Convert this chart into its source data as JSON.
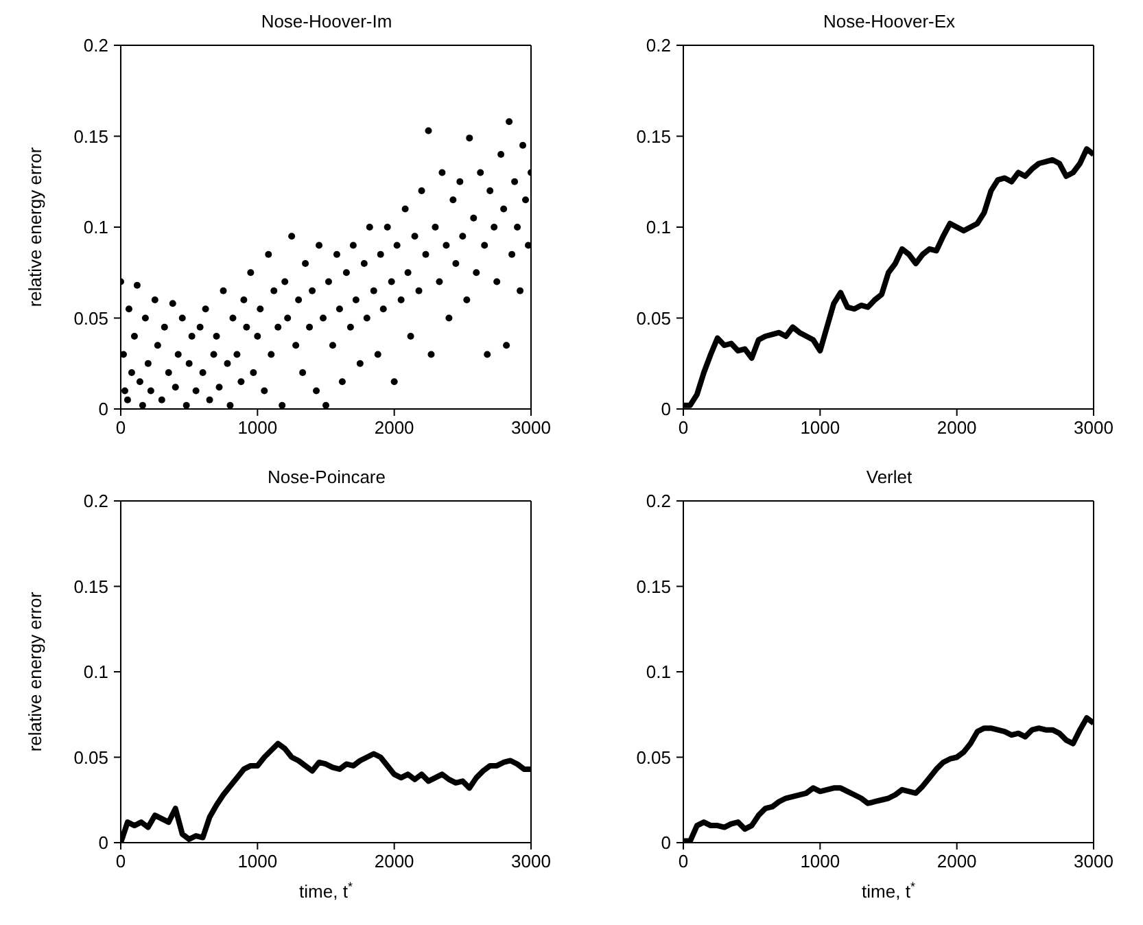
{
  "chart_data": [
    {
      "type": "scatter",
      "title": "Nose-Hoover-Im",
      "ylabel": "relative energy error",
      "color": "#000000",
      "marker": "circle",
      "xlim": [
        0,
        3000
      ],
      "xticks": [
        0,
        1000,
        2000,
        3000
      ],
      "ylim": [
        0,
        0.2
      ],
      "yticks": [
        0,
        0.05,
        0.1,
        0.15,
        0.2
      ],
      "x": [
        0,
        20,
        30,
        50,
        60,
        80,
        100,
        120,
        140,
        160,
        180,
        200,
        220,
        250,
        270,
        300,
        320,
        350,
        380,
        400,
        420,
        450,
        480,
        500,
        520,
        550,
        580,
        600,
        620,
        650,
        680,
        700,
        720,
        750,
        780,
        800,
        820,
        850,
        880,
        900,
        920,
        950,
        970,
        1000,
        1020,
        1050,
        1080,
        1100,
        1120,
        1150,
        1180,
        1200,
        1220,
        1250,
        1280,
        1300,
        1330,
        1350,
        1380,
        1400,
        1430,
        1450,
        1480,
        1500,
        1520,
        1550,
        1580,
        1600,
        1620,
        1650,
        1680,
        1700,
        1720,
        1750,
        1780,
        1800,
        1820,
        1850,
        1880,
        1900,
        1920,
        1950,
        1980,
        2000,
        2020,
        2050,
        2080,
        2100,
        2120,
        2150,
        2180,
        2200,
        2230,
        2250,
        2270,
        2300,
        2330,
        2350,
        2380,
        2400,
        2430,
        2450,
        2480,
        2500,
        2530,
        2550,
        2580,
        2600,
        2630,
        2660,
        2680,
        2700,
        2730,
        2750,
        2780,
        2800,
        2820,
        2840,
        2860,
        2880,
        2900,
        2920,
        2940,
        2960,
        2980,
        3000
      ],
      "values": [
        0.07,
        0.03,
        0.01,
        0.005,
        0.055,
        0.02,
        0.04,
        0.068,
        0.015,
        0.002,
        0.05,
        0.025,
        0.01,
        0.06,
        0.035,
        0.005,
        0.045,
        0.02,
        0.058,
        0.012,
        0.03,
        0.05,
        0.002,
        0.025,
        0.04,
        0.01,
        0.045,
        0.02,
        0.055,
        0.005,
        0.03,
        0.04,
        0.012,
        0.065,
        0.025,
        0.002,
        0.05,
        0.03,
        0.015,
        0.06,
        0.045,
        0.075,
        0.02,
        0.04,
        0.055,
        0.01,
        0.085,
        0.03,
        0.065,
        0.045,
        0.002,
        0.07,
        0.05,
        0.095,
        0.035,
        0.06,
        0.02,
        0.08,
        0.045,
        0.065,
        0.01,
        0.09,
        0.05,
        0.002,
        0.07,
        0.035,
        0.085,
        0.055,
        0.015,
        0.075,
        0.045,
        0.09,
        0.06,
        0.025,
        0.08,
        0.05,
        0.1,
        0.065,
        0.03,
        0.085,
        0.055,
        0.1,
        0.07,
        0.015,
        0.09,
        0.06,
        0.11,
        0.075,
        0.04,
        0.095,
        0.065,
        0.12,
        0.085,
        0.153,
        0.03,
        0.1,
        0.07,
        0.13,
        0.09,
        0.05,
        0.115,
        0.08,
        0.125,
        0.095,
        0.06,
        0.149,
        0.105,
        0.075,
        0.13,
        0.09,
        0.03,
        0.12,
        0.1,
        0.07,
        0.14,
        0.11,
        0.035,
        0.158,
        0.085,
        0.125,
        0.1,
        0.065,
        0.145,
        0.115,
        0.09,
        0.13
      ]
    },
    {
      "type": "line",
      "title": "Nose-Hoover-Ex",
      "color": "#000000",
      "xlim": [
        0,
        3000
      ],
      "xticks": [
        0,
        1000,
        2000,
        3000
      ],
      "ylim": [
        0,
        0.2
      ],
      "yticks": [
        0,
        0.05,
        0.1,
        0.15,
        0.2
      ],
      "x": [
        0,
        50,
        100,
        150,
        200,
        250,
        300,
        350,
        400,
        450,
        500,
        550,
        600,
        650,
        700,
        750,
        800,
        850,
        900,
        950,
        1000,
        1050,
        1100,
        1150,
        1200,
        1250,
        1300,
        1350,
        1400,
        1450,
        1500,
        1550,
        1600,
        1650,
        1700,
        1750,
        1800,
        1850,
        1900,
        1950,
        2000,
        2050,
        2100,
        2150,
        2200,
        2250,
        2300,
        2350,
        2400,
        2450,
        2500,
        2550,
        2600,
        2650,
        2700,
        2750,
        2800,
        2850,
        2900,
        2950,
        3000
      ],
      "values": [
        0.002,
        0.002,
        0.008,
        0.02,
        0.03,
        0.039,
        0.035,
        0.036,
        0.032,
        0.033,
        0.028,
        0.038,
        0.04,
        0.041,
        0.042,
        0.04,
        0.045,
        0.042,
        0.04,
        0.038,
        0.032,
        0.045,
        0.058,
        0.064,
        0.056,
        0.055,
        0.057,
        0.056,
        0.06,
        0.063,
        0.075,
        0.08,
        0.088,
        0.085,
        0.08,
        0.085,
        0.088,
        0.087,
        0.095,
        0.102,
        0.1,
        0.098,
        0.1,
        0.102,
        0.108,
        0.12,
        0.126,
        0.127,
        0.125,
        0.13,
        0.128,
        0.132,
        0.135,
        0.136,
        0.137,
        0.135,
        0.128,
        0.13,
        0.135,
        0.143,
        0.14
      ]
    },
    {
      "type": "line",
      "title": "Nose-Poincare",
      "ylabel": "relative energy error",
      "xlabel": "time, t$^{*}$",
      "color": "#000000",
      "xlim": [
        0,
        3000
      ],
      "xticks": [
        0,
        1000,
        2000,
        3000
      ],
      "ylim": [
        0,
        0.2
      ],
      "yticks": [
        0,
        0.05,
        0.1,
        0.15,
        0.2
      ],
      "x": [
        0,
        50,
        100,
        150,
        200,
        250,
        300,
        350,
        400,
        450,
        500,
        550,
        600,
        650,
        700,
        750,
        800,
        850,
        900,
        950,
        1000,
        1050,
        1100,
        1150,
        1200,
        1250,
        1300,
        1350,
        1400,
        1450,
        1500,
        1550,
        1600,
        1650,
        1700,
        1750,
        1800,
        1850,
        1900,
        1950,
        2000,
        2050,
        2100,
        2150,
        2200,
        2250,
        2300,
        2350,
        2400,
        2450,
        2500,
        2550,
        2600,
        2650,
        2700,
        2750,
        2800,
        2850,
        2900,
        2950,
        3000
      ],
      "values": [
        0,
        0.012,
        0.01,
        0.012,
        0.009,
        0.016,
        0.014,
        0.012,
        0.02,
        0.005,
        0.002,
        0.004,
        0.003,
        0.015,
        0.022,
        0.028,
        0.033,
        0.038,
        0.043,
        0.045,
        0.045,
        0.05,
        0.054,
        0.058,
        0.055,
        0.05,
        0.048,
        0.045,
        0.042,
        0.047,
        0.046,
        0.044,
        0.043,
        0.046,
        0.045,
        0.048,
        0.05,
        0.052,
        0.05,
        0.045,
        0.04,
        0.038,
        0.04,
        0.037,
        0.04,
        0.036,
        0.038,
        0.04,
        0.037,
        0.035,
        0.036,
        0.032,
        0.038,
        0.042,
        0.045,
        0.045,
        0.047,
        0.048,
        0.046,
        0.043,
        0.043
      ]
    },
    {
      "type": "line",
      "title": "Verlet",
      "xlabel": "time, t$^{*}$",
      "color": "#000000",
      "xlim": [
        0,
        3000
      ],
      "xticks": [
        0,
        1000,
        2000,
        3000
      ],
      "ylim": [
        0,
        0.2
      ],
      "yticks": [
        0,
        0.05,
        0.1,
        0.15,
        0.2
      ],
      "x": [
        0,
        50,
        100,
        150,
        200,
        250,
        300,
        350,
        400,
        450,
        500,
        550,
        600,
        650,
        700,
        750,
        800,
        850,
        900,
        950,
        1000,
        1050,
        1100,
        1150,
        1200,
        1250,
        1300,
        1350,
        1400,
        1450,
        1500,
        1550,
        1600,
        1650,
        1700,
        1750,
        1800,
        1850,
        1900,
        1950,
        2000,
        2050,
        2100,
        2150,
        2200,
        2250,
        2300,
        2350,
        2400,
        2450,
        2500,
        2550,
        2600,
        2650,
        2700,
        2750,
        2800,
        2850,
        2900,
        2950,
        3000
      ],
      "values": [
        0.001,
        0.001,
        0.01,
        0.012,
        0.01,
        0.01,
        0.009,
        0.011,
        0.012,
        0.008,
        0.01,
        0.016,
        0.02,
        0.021,
        0.024,
        0.026,
        0.027,
        0.028,
        0.029,
        0.032,
        0.03,
        0.031,
        0.032,
        0.032,
        0.03,
        0.028,
        0.026,
        0.023,
        0.024,
        0.025,
        0.026,
        0.028,
        0.031,
        0.03,
        0.029,
        0.033,
        0.038,
        0.043,
        0.047,
        0.049,
        0.05,
        0.053,
        0.058,
        0.065,
        0.067,
        0.067,
        0.066,
        0.065,
        0.063,
        0.064,
        0.062,
        0.066,
        0.067,
        0.066,
        0.066,
        0.064,
        0.06,
        0.058,
        0.066,
        0.073,
        0.07
      ]
    }
  ]
}
